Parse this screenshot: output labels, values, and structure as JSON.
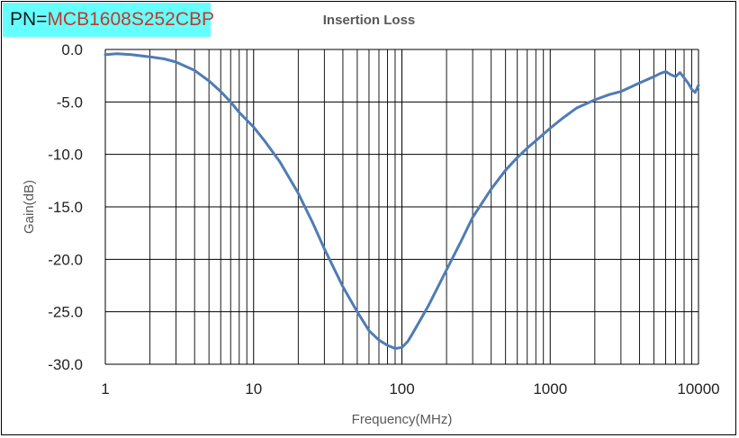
{
  "pn": {
    "prefix": "PN=",
    "value": "MCB1608S252CBP"
  },
  "chart_data": {
    "type": "line",
    "title": "Insertion Loss",
    "xlabel": "Frequency(MHz)",
    "ylabel": "Gain(dB)",
    "xscale": "log",
    "xlim": [
      1,
      10000
    ],
    "ylim": [
      -30,
      0
    ],
    "grid": true,
    "legend": "none",
    "xticks": [
      "1",
      "10",
      "100",
      "1000",
      "10000"
    ],
    "yticks": [
      "0.0",
      "-5.0",
      "-10.0",
      "-15.0",
      "-20.0",
      "-25.0",
      "-30.0"
    ],
    "series_color": "#4F7CB4",
    "series": [
      {
        "x": [
          1,
          1.2,
          1.5,
          2,
          2.5,
          3,
          4,
          5,
          6,
          7,
          8,
          10,
          12,
          15,
          20,
          25,
          30,
          40,
          50,
          60,
          70,
          80,
          90,
          100,
          110,
          120,
          150,
          200,
          250,
          300,
          400,
          500,
          600,
          700,
          800,
          1000,
          1200,
          1500,
          2000,
          2500,
          3000,
          4000,
          5000,
          5500,
          6000,
          6500,
          7000,
          7500,
          8000,
          8500,
          9000,
          9500,
          10000
        ],
        "y": [
          -0.5,
          -0.4,
          -0.5,
          -0.7,
          -0.9,
          -1.2,
          -2.0,
          -3.0,
          -4.0,
          -5.0,
          -6.0,
          -7.4,
          -8.8,
          -10.7,
          -13.7,
          -16.5,
          -19.0,
          -22.6,
          -25.0,
          -26.8,
          -27.7,
          -28.2,
          -28.5,
          -28.4,
          -27.8,
          -26.9,
          -24.5,
          -21.0,
          -18.3,
          -16.0,
          -13.3,
          -11.5,
          -10.3,
          -9.4,
          -8.7,
          -7.5,
          -6.6,
          -5.6,
          -4.8,
          -4.3,
          -4.0,
          -3.2,
          -2.6,
          -2.3,
          -2.1,
          -2.4,
          -2.6,
          -2.2,
          -2.7,
          -3.2,
          -3.8,
          -4.1,
          -3.4
        ]
      }
    ]
  }
}
